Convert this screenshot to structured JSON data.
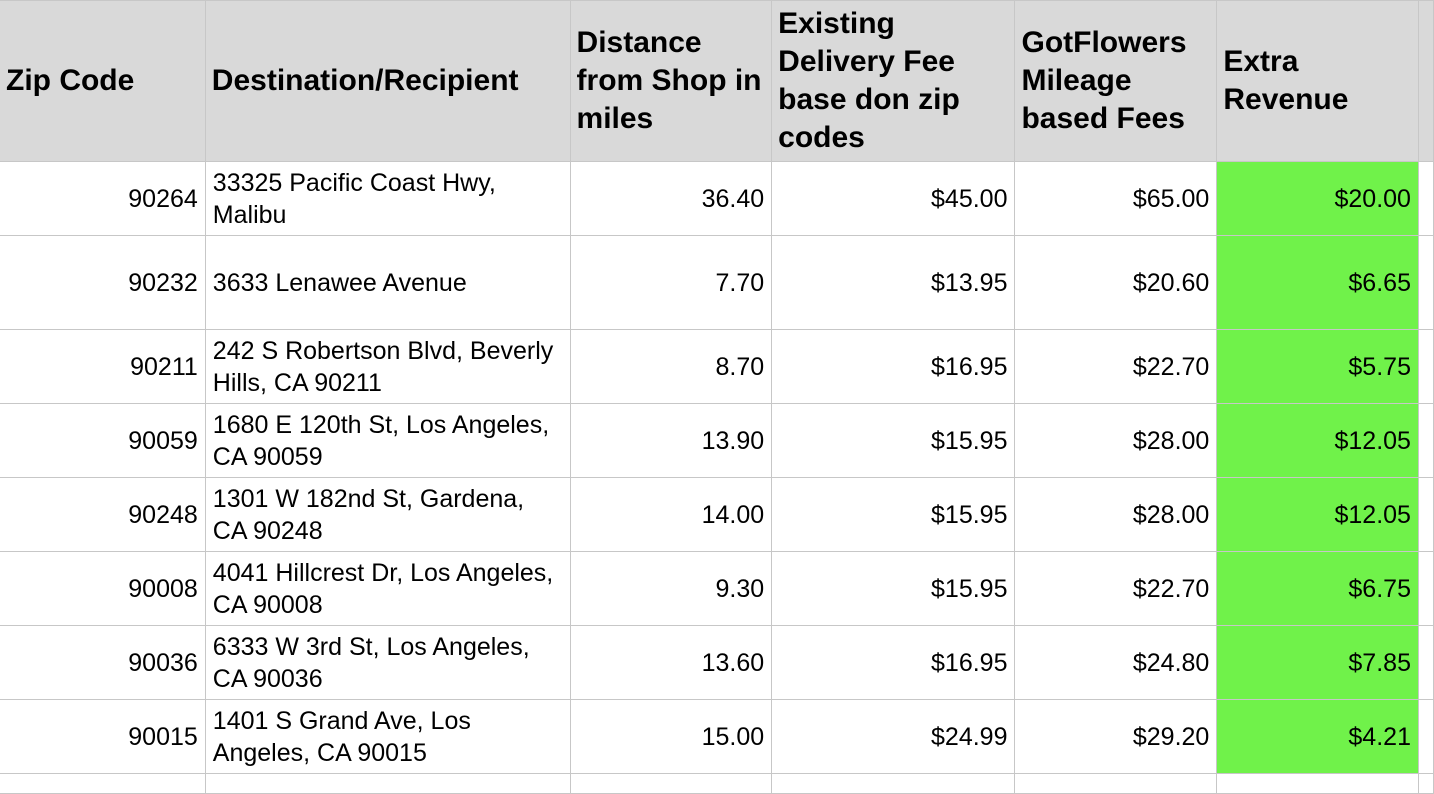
{
  "columns": [
    "Zip Code",
    "Destination/Recipient",
    "Distance from Shop in miles",
    "Existing Delivery Fee base don zip codes",
    "GotFlowers Mileage based Fees",
    "Extra Revenue"
  ],
  "highlight_color": "#70f24a",
  "header_bg": "#d9d9d9",
  "rows": [
    {
      "zip": "90264",
      "dest": "33325 Pacific Coast Hwy, Malibu",
      "dist": "36.40",
      "existing": "$45.00",
      "mileage": "$65.00",
      "extra": "$20.00"
    },
    {
      "zip": "90232",
      "dest": "3633 Lenawee Avenue",
      "dist": "7.70",
      "existing": "$13.95",
      "mileage": "$20.60",
      "extra": "$6.65"
    },
    {
      "zip": "90211",
      "dest": "242 S Robertson Blvd, Beverly Hills, CA 90211",
      "dist": "8.70",
      "existing": "$16.95",
      "mileage": "$22.70",
      "extra": "$5.75"
    },
    {
      "zip": "90059",
      "dest": "1680 E 120th St, Los Angeles, CA 90059",
      "dist": "13.90",
      "existing": "$15.95",
      "mileage": "$28.00",
      "extra": "$12.05"
    },
    {
      "zip": "90248",
      "dest": "1301 W 182nd St, Gardena, CA 90248",
      "dist": "14.00",
      "existing": "$15.95",
      "mileage": "$28.00",
      "extra": "$12.05"
    },
    {
      "zip": "90008",
      "dest": "4041 Hillcrest Dr, Los Angeles, CA 90008",
      "dist": "9.30",
      "existing": "$15.95",
      "mileage": "$22.70",
      "extra": "$6.75"
    },
    {
      "zip": "90036",
      "dest": "6333 W 3rd St, Los Angeles, CA 90036",
      "dist": "13.60",
      "existing": "$16.95",
      "mileage": "$24.80",
      "extra": "$7.85"
    },
    {
      "zip": "90015",
      "dest": "1401 S Grand Ave, Los Angeles, CA 90015",
      "dist": "15.00",
      "existing": "$24.99",
      "mileage": "$29.20",
      "extra": "$4.21"
    }
  ]
}
